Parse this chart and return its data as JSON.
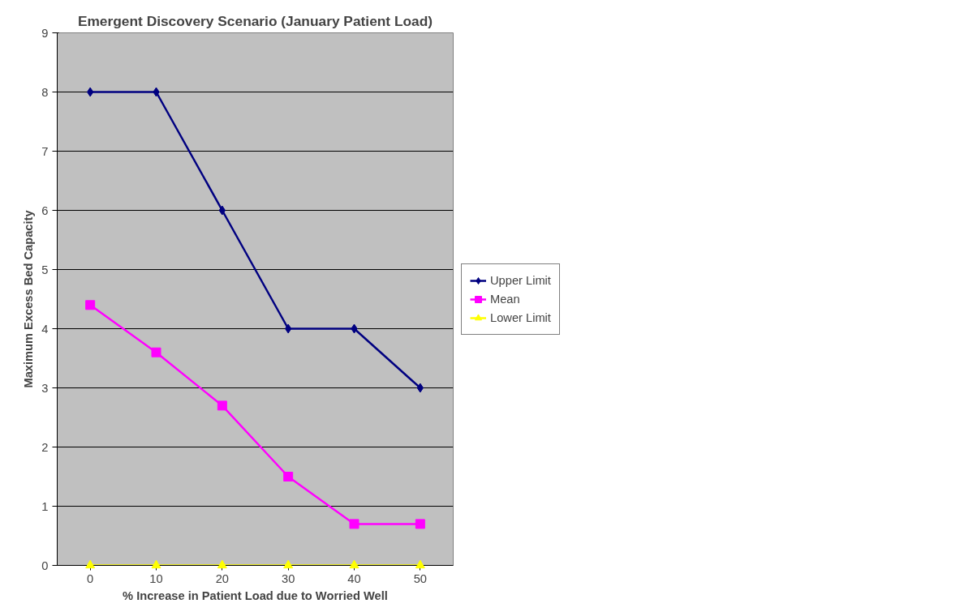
{
  "chart_data": {
    "type": "line",
    "title": "Emergent Discovery Scenario (January Patient Load)",
    "xlabel": "% Increase in Patient Load due to Worried Well",
    "ylabel": "Maximum Excess Bed Capacity",
    "categories": [
      "0",
      "10",
      "20",
      "30",
      "40",
      "50"
    ],
    "series": [
      {
        "name": "Upper Limit",
        "color": "#000080",
        "marker": "diamond",
        "values": [
          8,
          8,
          6,
          4,
          4,
          3
        ]
      },
      {
        "name": "Mean",
        "color": "#ff00ff",
        "marker": "square",
        "values": [
          4.4,
          3.6,
          2.7,
          1.5,
          0.7,
          0.7
        ]
      },
      {
        "name": "Lower Limit",
        "color": "#ffff00",
        "marker": "triangle",
        "values": [
          0,
          0,
          0,
          0,
          0,
          0
        ]
      }
    ],
    "ylim": [
      0,
      9
    ],
    "yticks": [
      0,
      1,
      2,
      3,
      4,
      5,
      6,
      7,
      8,
      9
    ],
    "grid": "y",
    "legend": "right",
    "line_style": "solid"
  }
}
